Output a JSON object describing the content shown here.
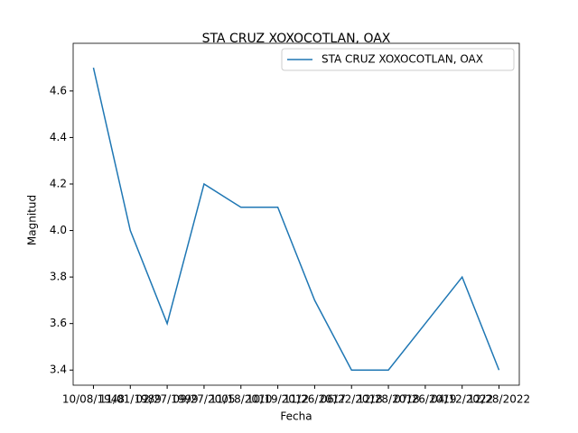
{
  "chart_data": {
    "type": "line",
    "title": "STA CRUZ XOXOCOTLAN, OAX",
    "xlabel": "Fecha",
    "ylabel": "Magnitud",
    "categories": [
      "10/08/1948",
      "11/01/1989",
      "02/27/1999",
      "09/27/2005",
      "11/18/2010",
      "10/19/2012",
      "11/26/2017",
      "06/22/2018",
      "12/28/2018",
      "07/26/2019",
      "04/12/2022",
      "12/28/2022"
    ],
    "series": [
      {
        "name": "STA CRUZ XOXOCOTLAN, OAX",
        "color": "#1f77b4",
        "values": [
          4.7,
          4.0,
          3.6,
          4.2,
          4.1,
          4.1,
          3.7,
          3.4,
          3.4,
          3.6,
          3.8,
          3.4
        ]
      }
    ],
    "ylim": [
      3.335,
      4.805
    ],
    "yticks": [
      3.4,
      3.6,
      3.8,
      {
        "value": 4,
        "label": "4.0"
      },
      4.2,
      4.4,
      4.6
    ],
    "legend": "upper right",
    "grid": false
  }
}
